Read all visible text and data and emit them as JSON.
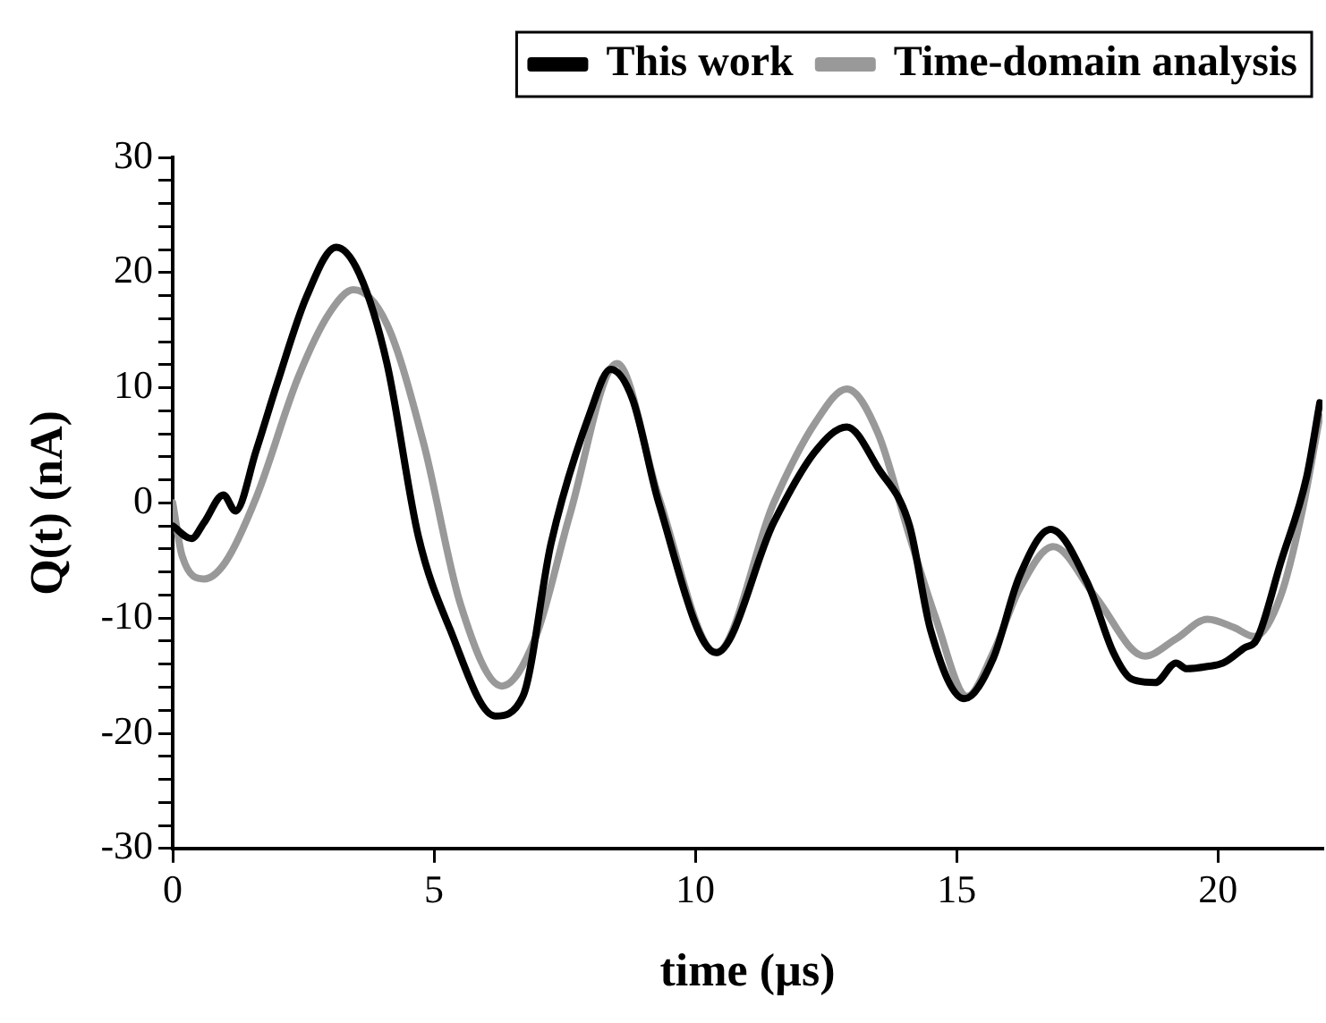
{
  "chart_data": {
    "type": "line",
    "xlabel": "time (µs)",
    "ylabel": "Q(t) (nA)",
    "xlim": [
      0,
      22
    ],
    "xticks": [
      0,
      5,
      10,
      15,
      20
    ],
    "ylim": [
      -30,
      30
    ],
    "yticks": [
      -30,
      {
        "value": -28,
        "label": null
      },
      {
        "value": -26,
        "label": null
      },
      {
        "value": -24,
        "label": null
      },
      {
        "value": -22,
        "label": null
      },
      -20,
      {
        "value": -18,
        "label": null
      },
      {
        "value": -16,
        "label": null
      },
      {
        "value": -14,
        "label": null
      },
      {
        "value": -12,
        "label": null
      },
      -10,
      {
        "value": -8,
        "label": null
      },
      {
        "value": -6,
        "label": null
      },
      {
        "value": -4,
        "label": null
      },
      {
        "value": -2,
        "label": null
      },
      0,
      {
        "value": 2,
        "label": null
      },
      {
        "value": 4,
        "label": null
      },
      {
        "value": 6,
        "label": null
      },
      {
        "value": 8,
        "label": null
      },
      10,
      {
        "value": 12,
        "label": null
      },
      {
        "value": 14,
        "label": null
      },
      {
        "value": 16,
        "label": null
      },
      {
        "value": 18,
        "label": null
      },
      20,
      {
        "value": 22,
        "label": null
      },
      {
        "value": 24,
        "label": null
      },
      {
        "value": 26,
        "label": null
      },
      {
        "value": 28,
        "label": null
      },
      30
    ],
    "grid": false,
    "legend": "top right",
    "marker": "none",
    "line_style": "solid",
    "series": [
      {
        "name": "This work",
        "color": "#000000",
        "x": [
          0,
          0.36,
          0.6,
          0.97,
          1.2,
          1.6,
          2.0,
          2.56,
          3.13,
          3.57,
          4.1,
          4.7,
          5.3,
          6.17,
          6.7,
          7.24,
          8.0,
          8.38,
          8.8,
          9.3,
          10.4,
          11.5,
          12.3,
          12.9,
          13.5,
          14.1,
          14.5,
          15.15,
          15.7,
          16.2,
          16.8,
          17.5,
          18.0,
          18.35,
          18.8,
          19.2,
          19.4,
          19.8,
          20.1,
          20.5,
          20.75,
          21.2,
          21.7,
          21.95
        ],
        "values": [
          -2,
          -3.1,
          -1.7,
          0.7,
          -0.7,
          4.6,
          10.4,
          17.9,
          22.2,
          19.9,
          12.1,
          -2.9,
          -10.9,
          -18.5,
          -16.8,
          -3.5,
          8,
          11.6,
          9,
          0,
          -13,
          -1.7,
          4.5,
          6.6,
          3,
          -2,
          -11,
          -17,
          -13.5,
          -6.4,
          -2.3,
          -6.9,
          -13,
          -15.3,
          -15.6,
          -13.9,
          -14.4,
          -14.2,
          -13.9,
          -12.6,
          -11.8,
          -5.2,
          2.3,
          8.7
        ]
      },
      {
        "name": "Time-domain analysis",
        "color": "#999999",
        "x": [
          0,
          0.18,
          0.6,
          1.0,
          1.6,
          2.4,
          3.0,
          3.46,
          4.1,
          4.8,
          5.5,
          6.3,
          6.95,
          7.6,
          8.5,
          9.3,
          10.4,
          11.5,
          12.3,
          12.9,
          13.5,
          14.1,
          14.6,
          15.2,
          15.7,
          16.2,
          16.85,
          17.65,
          18.6,
          19.2,
          19.8,
          20.3,
          20.7,
          21.2,
          21.6,
          21.95
        ],
        "values": [
          0,
          -4.6,
          -6.6,
          -5.2,
          0.5,
          10.9,
          16.5,
          18.5,
          15.5,
          5.2,
          -8.7,
          -15.9,
          -11.6,
          -1,
          12.1,
          0.5,
          -13,
          0,
          7,
          9.9,
          6,
          -2.9,
          -10,
          -16.8,
          -13,
          -7.5,
          -3.8,
          -8.1,
          -13.3,
          -11.8,
          -10.1,
          -10.8,
          -11.6,
          -8.1,
          -1,
          7.5
        ]
      }
    ]
  }
}
